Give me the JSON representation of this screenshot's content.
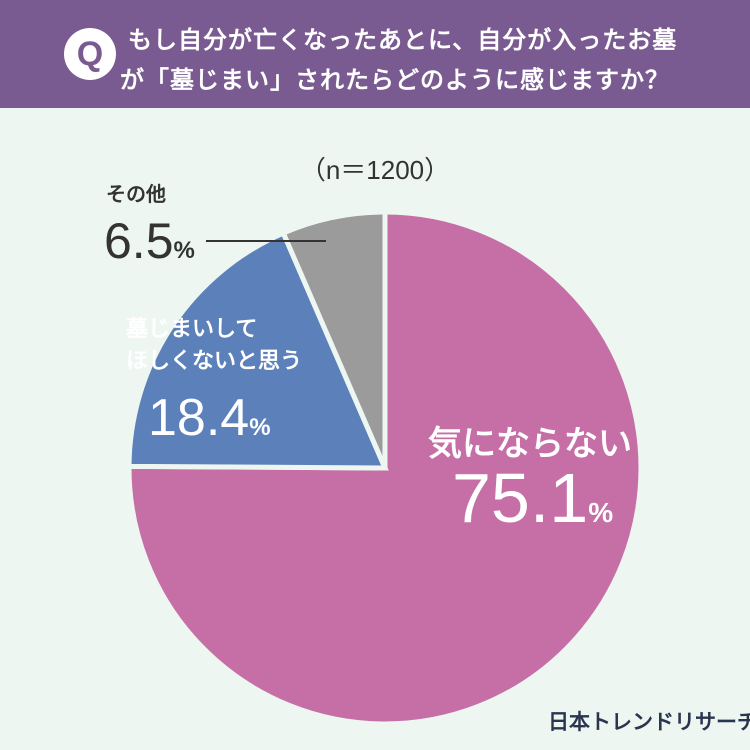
{
  "header": {
    "badge": "Q",
    "question_line1": "もし自分が亡くなったあとに、自分が入ったお墓",
    "question_line2": "が「墓じまい」されたらどのように感じますか？"
  },
  "sample_size": "（n＝1200）",
  "colors": {
    "header_bg": "#7a5b91",
    "page_bg": "#eef6f2",
    "pink": "#c56fa6",
    "blue": "#5b80ba",
    "gray": "#9b9b9b"
  },
  "chart_data": {
    "type": "pie",
    "start_angle_deg": 0,
    "direction": "clockwise",
    "slices": [
      {
        "label": "気にならない",
        "value": 75.1,
        "value_text": "75.1",
        "unit": "%",
        "color": "#c56fa6"
      },
      {
        "label": "墓じまいしてほしくないと思う",
        "value": 18.4,
        "value_text": "18.4",
        "unit": "%",
        "color": "#5b80ba",
        "label_lines": [
          "墓じまいして",
          "ほしくないと思う"
        ]
      },
      {
        "label": "その他",
        "value": 6.5,
        "value_text": "6.5",
        "unit": "%",
        "color": "#9b9b9b"
      }
    ]
  },
  "brand": "日本トレンドリサーチ"
}
